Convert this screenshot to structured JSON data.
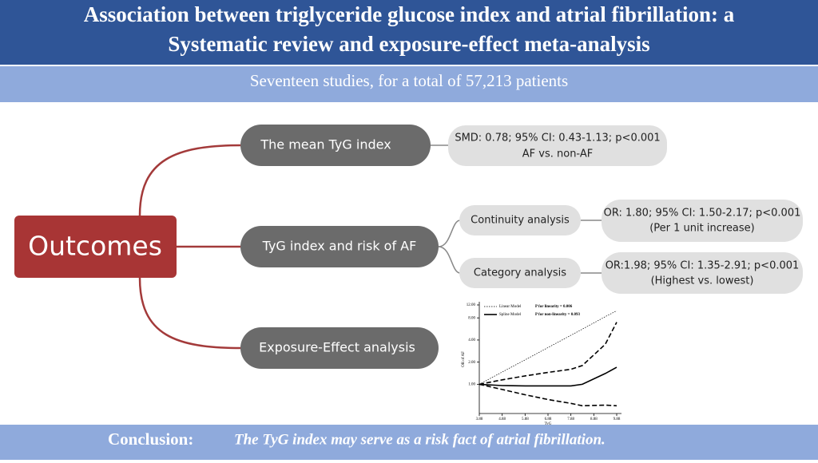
{
  "header": {
    "title": [
      "Association between triglyceride glucose index and atrial fibrillation: a",
      "Systematic review and exposure-effect meta-analysis"
    ],
    "subtitle": "Seventeen studies, for a total of  57,213 patients"
  },
  "root": "Outcomes",
  "nodes": [
    {
      "label": "The mean TyG index",
      "result": [
        "SMD: 0.78; 95% CI: 0.43-1.13; p<0.001",
        "AF vs. non-AF"
      ]
    },
    {
      "label": "TyG index and risk of AF",
      "children": [
        {
          "label": "Continuity analysis",
          "result": [
            "OR: 1.80; 95% CI: 1.50-2.17;  p<0.001",
            "(Per 1 unit increase)"
          ]
        },
        {
          "label": "Category analysis",
          "result": [
            "OR:1.98; 95% CI: 1.35-2.91; p<0.001",
            "(Highest vs. lowest)"
          ]
        }
      ]
    },
    {
      "label": "Exposure-Effect analysis"
    }
  ],
  "conclusion": {
    "label": "Conclusion:",
    "text": "The TyG index may serve as a  risk fact of atrial fibrillation."
  },
  "chart_data": {
    "type": "line",
    "x_label": "TyG",
    "y_label": "OR of AF",
    "annotations": [
      "P  for linearity = 0.006",
      "P  for non-linearity = 0.093"
    ],
    "log_y": true,
    "x": [
      3.88,
      4.88,
      5.88,
      6.88,
      7.88,
      8.38,
      9.38,
      9.88
    ],
    "xlim": [
      3.88,
      9.88
    ],
    "xticks": [
      {
        "value": 3.88,
        "label": "3.88"
      },
      {
        "value": 4.88,
        "label": "4.88"
      },
      {
        "value": 5.88,
        "label": "5.88"
      },
      {
        "value": 6.88,
        "label": "6.88"
      },
      {
        "value": 7.88,
        "label": "7.88"
      },
      {
        "value": 8.88,
        "label": "8.88"
      },
      {
        "value": 9.88,
        "label": "9.88"
      }
    ],
    "ylim": [
      0.4,
      12
    ],
    "yticks": [
      {
        "value": 1,
        "label": "1.00"
      },
      {
        "value": 2,
        "label": "2.00"
      },
      {
        "value": 4,
        "label": "4.00"
      },
      {
        "value": 8,
        "label": "8.00"
      },
      {
        "value": 12,
        "label": "12.00"
      }
    ],
    "series": [
      {
        "name": "Linear Model",
        "color": "#000000",
        "style": "dotted",
        "values": [
          1,
          1.47,
          2.15,
          3.16,
          4.64,
          5.62,
          8.3,
          10
        ]
      },
      {
        "name": "Spline Model",
        "color": "#000000",
        "style": "solid",
        "values": [
          1,
          0.96,
          0.95,
          0.95,
          0.95,
          1.0,
          1.4,
          1.7
        ]
      },
      {
        "color": "#000000",
        "style": "dashed",
        "values": [
          1,
          1.15,
          1.3,
          1.45,
          1.6,
          1.8,
          3.5,
          7
        ]
      },
      {
        "color": "#000000",
        "style": "dashed",
        "values": [
          1,
          0.85,
          0.72,
          0.62,
          0.55,
          0.51,
          0.52,
          0.51
        ]
      }
    ]
  }
}
